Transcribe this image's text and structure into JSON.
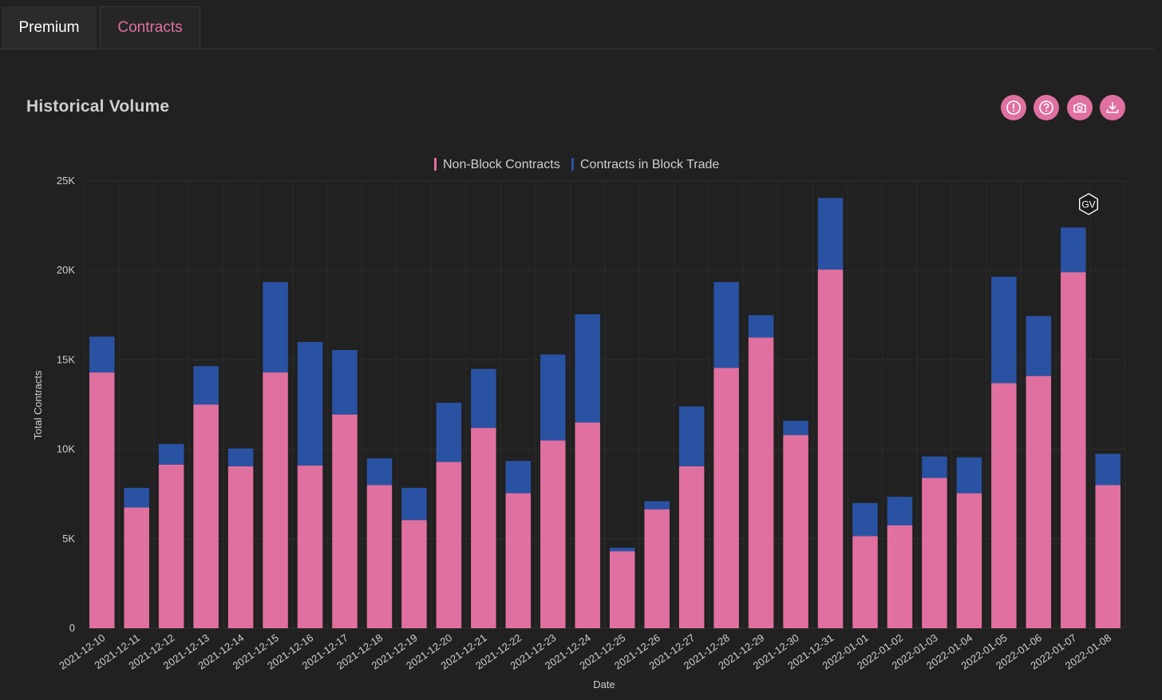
{
  "tabs": [
    {
      "label": "Premium",
      "active": false
    },
    {
      "label": "Contracts",
      "active": true
    }
  ],
  "panel": {
    "title": "Historical Volume",
    "actions": [
      {
        "icon": "alert-icon",
        "name": "info-button"
      },
      {
        "icon": "help-icon",
        "name": "help-button"
      },
      {
        "icon": "camera-icon",
        "name": "screenshot-button"
      },
      {
        "icon": "download-icon",
        "name": "download-button"
      }
    ]
  },
  "watermark": "GV",
  "colors": {
    "accent": "#e0709f",
    "non_block": "#e0709f",
    "block": "#2a52a3"
  },
  "chart_data": {
    "type": "bar",
    "stacked": true,
    "categories": [
      "2021-12-10",
      "2021-12-11",
      "2021-12-12",
      "2021-12-13",
      "2021-12-14",
      "2021-12-15",
      "2021-12-16",
      "2021-12-17",
      "2021-12-18",
      "2021-12-19",
      "2021-12-20",
      "2021-12-21",
      "2021-12-22",
      "2021-12-23",
      "2021-12-24",
      "2021-12-25",
      "2021-12-26",
      "2021-12-27",
      "2021-12-28",
      "2021-12-29",
      "2021-12-30",
      "2021-12-31",
      "2022-01-01",
      "2022-01-02",
      "2022-01-03",
      "2022-01-04",
      "2022-01-05",
      "2022-01-06",
      "2022-01-07",
      "2022-01-08"
    ],
    "series": [
      {
        "name": "Non-Block Contracts",
        "color": "#e0709f",
        "values": [
          14300,
          6750,
          9150,
          12500,
          9050,
          14300,
          9100,
          11950,
          8000,
          6050,
          9300,
          11200,
          7550,
          10500,
          11500,
          4300,
          6650,
          9050,
          14550,
          16250,
          10800,
          20050,
          5150,
          5750,
          8400,
          7550,
          13700,
          14100,
          19900,
          8000
        ]
      },
      {
        "name": "Contracts in Block Trade",
        "color": "#2a52a3",
        "values": [
          2000,
          1100,
          1150,
          2150,
          1000,
          5050,
          6900,
          3600,
          1500,
          1800,
          3300,
          3300,
          1800,
          4800,
          6050,
          200,
          450,
          3350,
          4800,
          1250,
          800,
          4000,
          1850,
          1600,
          1200,
          2000,
          5950,
          3350,
          2500,
          1750
        ]
      }
    ],
    "xlabel": "Date",
    "ylabel": "Total Contracts",
    "ylim": [
      0,
      25000
    ],
    "yticks": [
      {
        "value": 0,
        "label": "0"
      },
      {
        "value": 5000,
        "label": "5K"
      },
      {
        "value": 10000,
        "label": "10K"
      },
      {
        "value": 15000,
        "label": "15K"
      },
      {
        "value": 20000,
        "label": "20K"
      },
      {
        "value": 25000,
        "label": "25K"
      }
    ],
    "grid": true,
    "legend_position": "top-center"
  }
}
